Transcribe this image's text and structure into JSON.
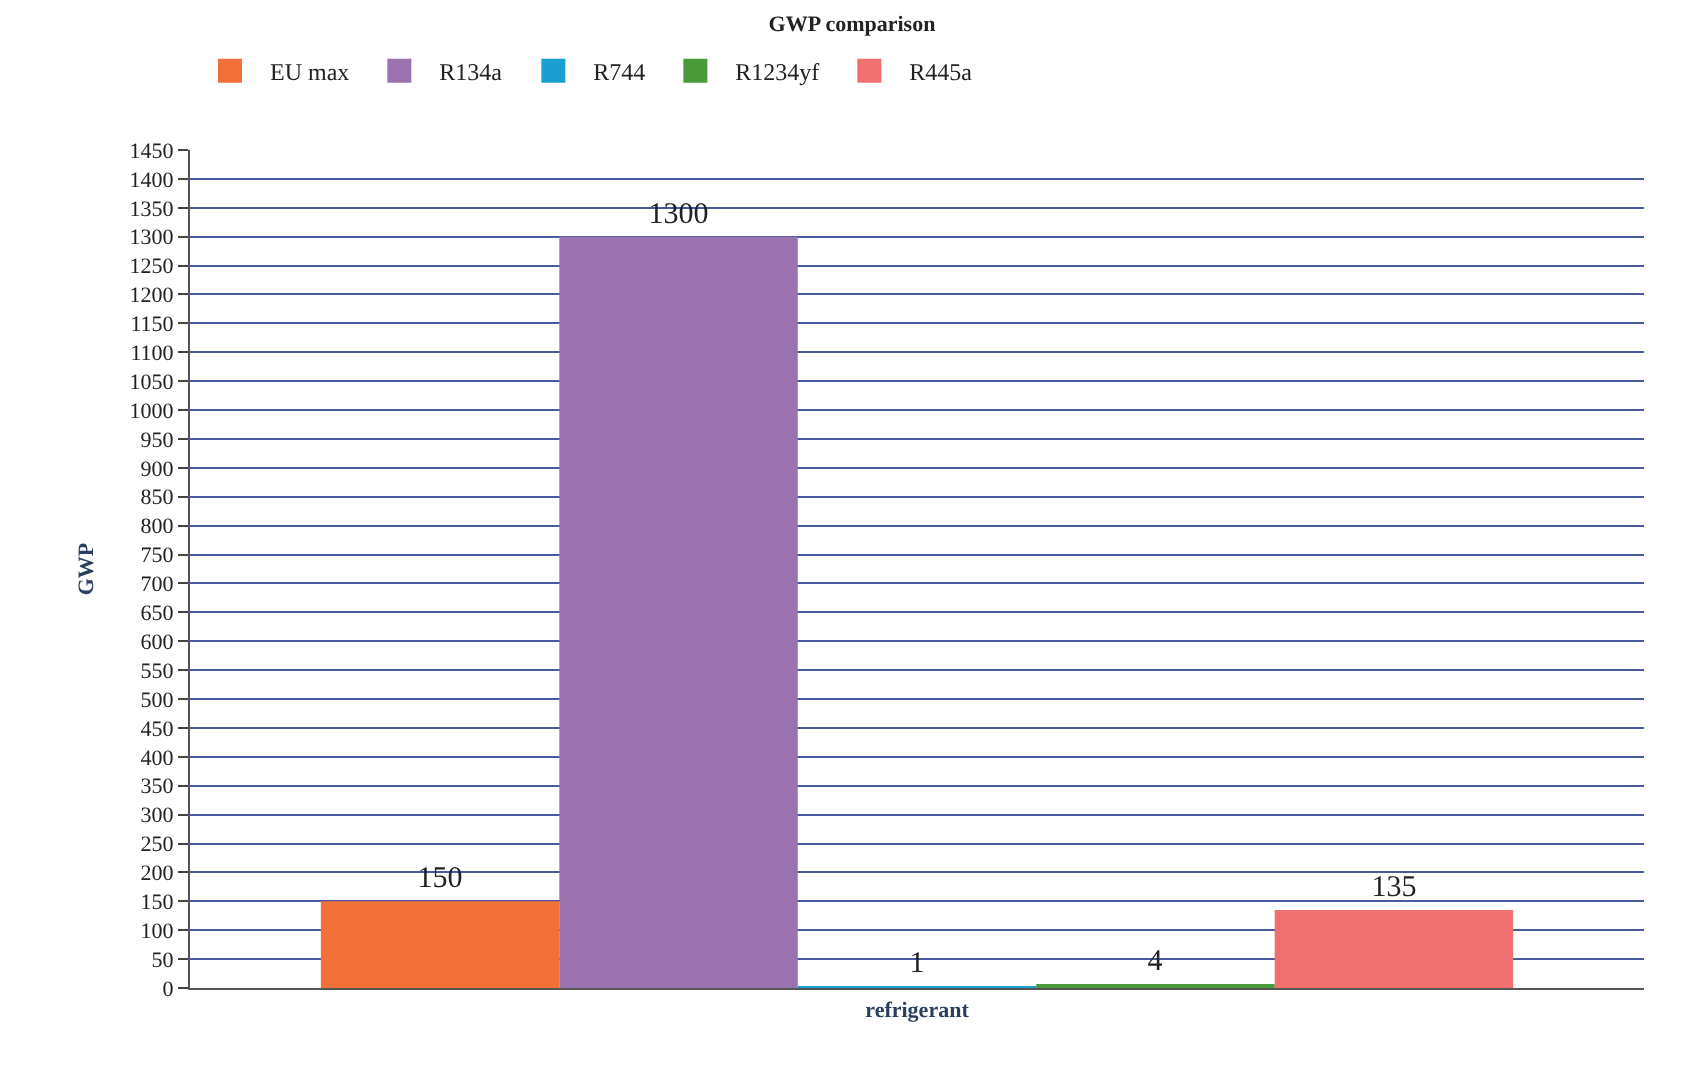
{
  "chart_data": {
    "type": "bar",
    "title": "GWP comparison",
    "xlabel": "refrigerant",
    "ylabel": "GWP",
    "categories": [
      null
    ],
    "series": [
      {
        "name": "EU max",
        "color": "#f07038",
        "values": [
          150
        ]
      },
      {
        "name": "R134a",
        "color": "#9b72b0",
        "values": [
          1300
        ]
      },
      {
        "name": "R744",
        "color": "#1a9fd0",
        "values": [
          1
        ]
      },
      {
        "name": "R1234yf",
        "color": "#4a9a3a",
        "values": [
          4
        ]
      },
      {
        "name": "R445a",
        "color": "#f07070",
        "values": [
          135
        ]
      }
    ],
    "ylim": [
      0,
      1450
    ],
    "yticks": [
      0,
      50,
      100,
      150,
      200,
      250,
      300,
      350,
      400,
      450,
      500,
      550,
      600,
      650,
      700,
      750,
      800,
      850,
      900,
      950,
      1000,
      1050,
      1100,
      1150,
      1200,
      1250,
      1300,
      1350,
      1400,
      1450
    ],
    "grid": "y",
    "legend": "top left",
    "data_labels": true
  }
}
